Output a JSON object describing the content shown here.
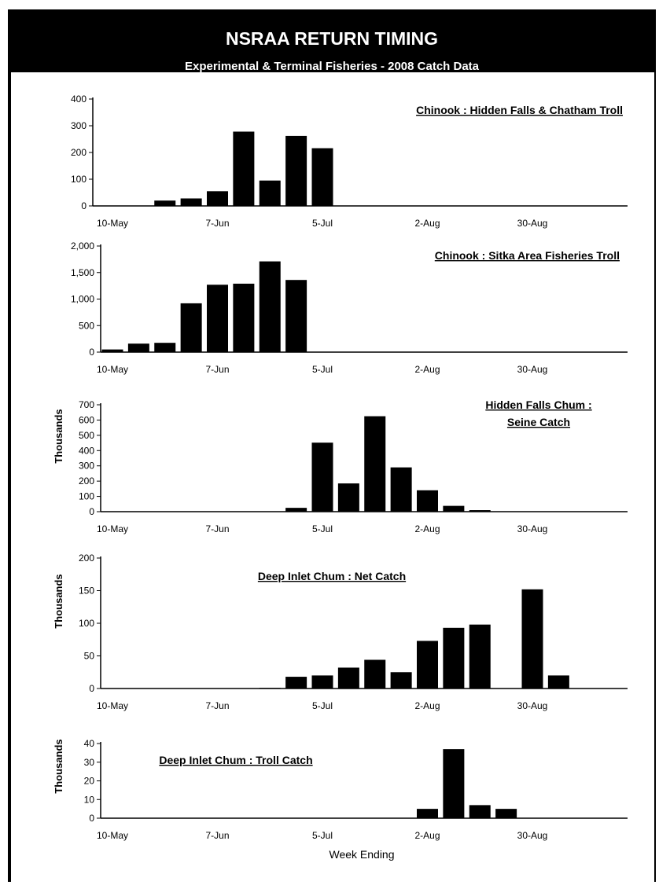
{
  "header": {
    "title": "NSRAA RETURN TIMING",
    "subtitle": "Experimental & Terminal Fisheries - 2008 Catch Data"
  },
  "week_labels": [
    "10-May",
    "7-Jun",
    "5-Jul",
    "2-Aug",
    "30-Aug"
  ],
  "x_axis_label": "Week Ending",
  "chart_data": [
    {
      "type": "bar",
      "title_lines": [
        "Chinook : Hidden Falls & Chatham Troll"
      ],
      "ylabel": "",
      "ylim": [
        0,
        400
      ],
      "yticks": [
        "0",
        "100",
        "200",
        "300",
        "400"
      ],
      "x_categories": [
        "10-May",
        "7-Jun",
        "5-Jul",
        "2-Aug",
        "30-Aug"
      ],
      "bars": [
        {
          "week": "24-May",
          "value": 20
        },
        {
          "week": "31-May",
          "value": 28
        },
        {
          "week": "7-Jun",
          "value": 55
        },
        {
          "week": "14-Jun",
          "value": 278
        },
        {
          "week": "21-Jun",
          "value": 95
        },
        {
          "week": "28-Jun",
          "value": 262
        },
        {
          "week": "5-Jul",
          "value": 216
        }
      ]
    },
    {
      "type": "bar",
      "title_lines": [
        "Chinook : Sitka Area Fisheries Troll"
      ],
      "ylabel": "",
      "ylim": [
        0,
        2000
      ],
      "yticks": [
        "0",
        "500",
        "1,000",
        "1,500",
        "2,000"
      ],
      "x_categories": [
        "10-May",
        "7-Jun",
        "5-Jul",
        "2-Aug",
        "30-Aug"
      ],
      "bars": [
        {
          "week": "10-May",
          "value": 50
        },
        {
          "week": "17-May",
          "value": 160
        },
        {
          "week": "24-May",
          "value": 175
        },
        {
          "week": "31-May",
          "value": 920
        },
        {
          "week": "7-Jun",
          "value": 1270
        },
        {
          "week": "14-Jun",
          "value": 1290
        },
        {
          "week": "21-Jun",
          "value": 1710
        },
        {
          "week": "28-Jun",
          "value": 1360
        }
      ]
    },
    {
      "type": "bar",
      "title_lines": [
        "Hidden Falls Chum :",
        "Seine Catch"
      ],
      "ylabel": "Thousands",
      "ylim": [
        0,
        700
      ],
      "yticks": [
        "0",
        "100",
        "200",
        "300",
        "400",
        "500",
        "600",
        "700"
      ],
      "x_categories": [
        "10-May",
        "7-Jun",
        "5-Jul",
        "2-Aug",
        "30-Aug"
      ],
      "bars": [
        {
          "week": "28-Jun",
          "value": 25
        },
        {
          "week": "5-Jul",
          "value": 452
        },
        {
          "week": "12-Jul",
          "value": 185
        },
        {
          "week": "19-Jul",
          "value": 625
        },
        {
          "week": "26-Jul",
          "value": 290
        },
        {
          "week": "2-Aug",
          "value": 140
        },
        {
          "week": "9-Aug",
          "value": 38
        },
        {
          "week": "16-Aug",
          "value": 10
        }
      ]
    },
    {
      "type": "bar",
      "title_lines": [
        "Deep Inlet Chum : Net Catch"
      ],
      "ylabel": "Thousands",
      "ylim": [
        0,
        200
      ],
      "yticks": [
        "0",
        "50",
        "100",
        "150",
        "200"
      ],
      "x_categories": [
        "10-May",
        "7-Jun",
        "5-Jul",
        "2-Aug",
        "30-Aug"
      ],
      "bars": [
        {
          "week": "21-Jun",
          "value": 1
        },
        {
          "week": "28-Jun",
          "value": 18
        },
        {
          "week": "5-Jul",
          "value": 20
        },
        {
          "week": "12-Jul",
          "value": 32
        },
        {
          "week": "19-Jul",
          "value": 44
        },
        {
          "week": "26-Jul",
          "value": 25
        },
        {
          "week": "2-Aug",
          "value": 73
        },
        {
          "week": "9-Aug",
          "value": 93
        },
        {
          "week": "16-Aug",
          "value": 98
        },
        {
          "week": "30-Aug",
          "value": 152
        },
        {
          "week": "6-Sep",
          "value": 20
        }
      ]
    },
    {
      "type": "bar",
      "title_lines": [
        "Deep Inlet Chum : Troll Catch"
      ],
      "ylabel": "Thousands",
      "ylim": [
        0,
        40
      ],
      "yticks": [
        "0",
        "10",
        "20",
        "30",
        "40"
      ],
      "x_categories": [
        "10-May",
        "7-Jun",
        "5-Jul",
        "2-Aug",
        "30-Aug"
      ],
      "xlabel": "Week Ending",
      "bars": [
        {
          "week": "2-Aug",
          "value": 5
        },
        {
          "week": "9-Aug",
          "value": 37
        },
        {
          "week": "16-Aug",
          "value": 7
        },
        {
          "week": "23-Aug",
          "value": 5
        }
      ]
    }
  ]
}
